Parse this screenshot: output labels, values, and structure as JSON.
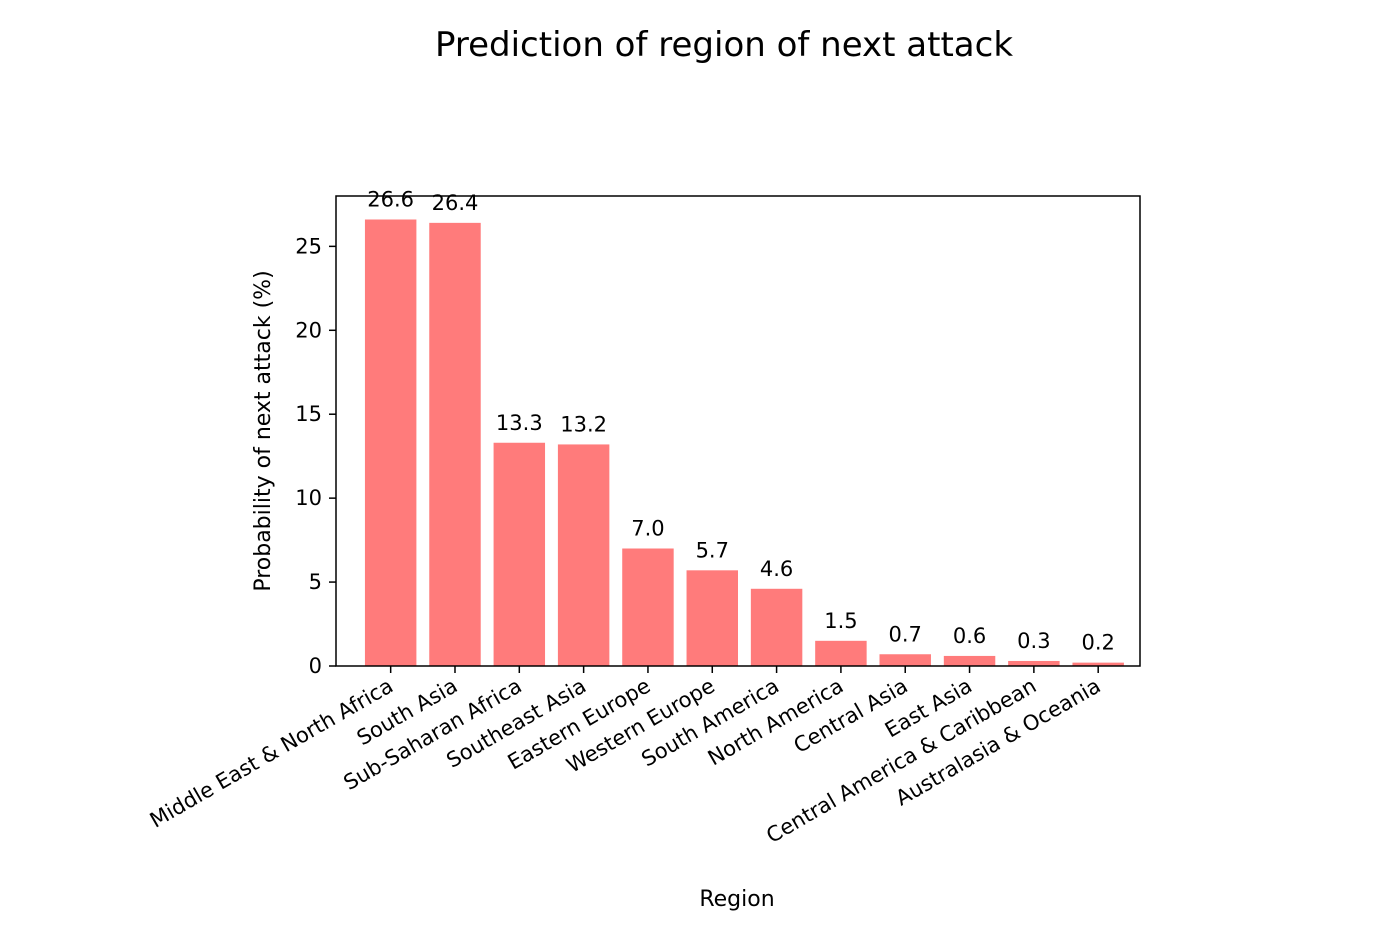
{
  "chart_data": {
    "type": "bar",
    "title": "Prediction of region of next attack",
    "xlabel": "Region",
    "ylabel": "Probability of next attack (%)",
    "categories": [
      "Middle East & North Africa",
      "South Asia",
      "Sub-Saharan Africa",
      "Southeast Asia",
      "Eastern Europe",
      "Western Europe",
      "South America",
      "North America",
      "Central Asia",
      "East Asia",
      "Central America & Caribbean",
      "Australasia & Oceania"
    ],
    "values": [
      26.6,
      26.4,
      13.3,
      13.2,
      7.0,
      5.7,
      4.6,
      1.5,
      0.7,
      0.6,
      0.3,
      0.2
    ],
    "value_labels": [
      "26.6",
      "26.4",
      "13.3",
      "13.2",
      "7.0",
      "5.7",
      "4.6",
      "1.5",
      "0.7",
      "0.6",
      "0.3",
      "0.2"
    ],
    "yticks": [
      0,
      5,
      10,
      15,
      20,
      25
    ],
    "ylim": [
      0,
      28
    ],
    "bar_color": "#ff7b7b",
    "grid": false,
    "legend": "none",
    "xtick_rotation": "30 degrees"
  }
}
